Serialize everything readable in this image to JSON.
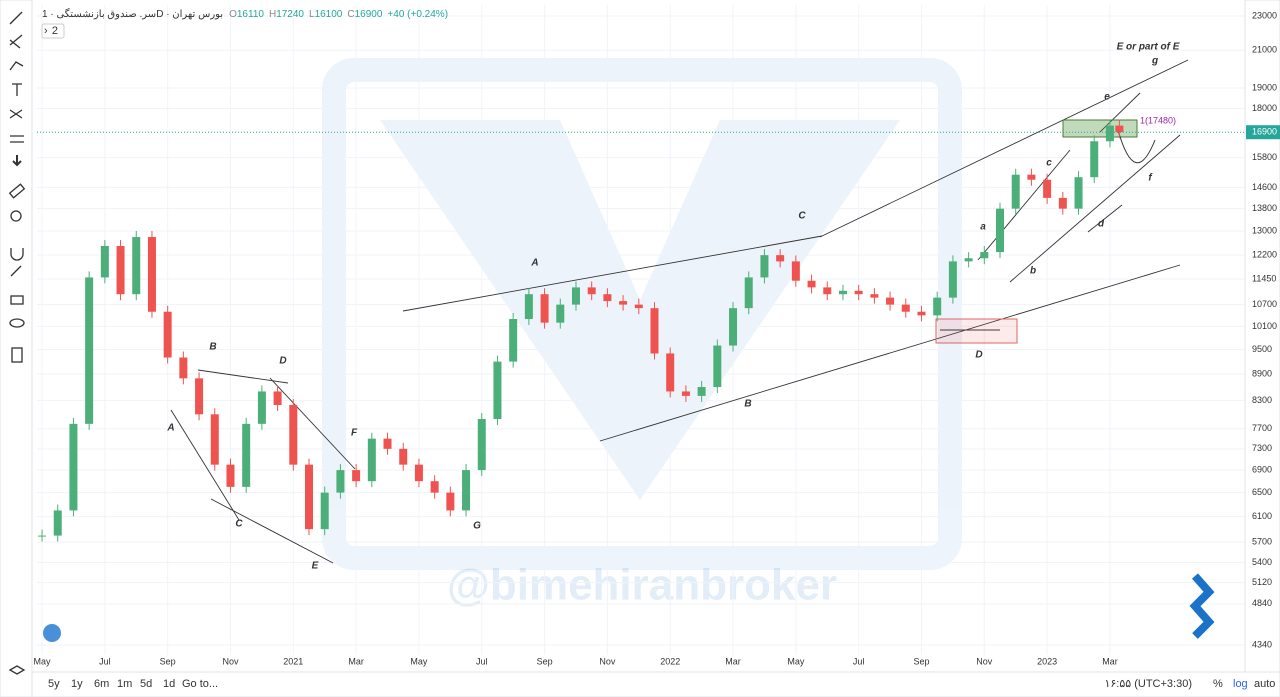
{
  "header": {
    "title": "سر. صندوق بازنشستگی · 1D · بورس تهران",
    "ohlc_letters": [
      "O",
      "H",
      "L",
      "C"
    ],
    "ohlc": [
      16110,
      17240,
      16100,
      16900
    ],
    "change": "+40 (+0.24%)",
    "collapse": "2"
  },
  "chart_data": {
    "type": "candlestick",
    "log_scale": true,
    "x": [
      0,
      0.5,
      1,
      1.5,
      2,
      2.5,
      3,
      3.5,
      4,
      4.5,
      5,
      5.5,
      6,
      6.5,
      7,
      7.5,
      8,
      8.5,
      9,
      9.5,
      10,
      10.5,
      11,
      11.5,
      12,
      12.5,
      13,
      13.5,
      14,
      14.5,
      15,
      15.5,
      16,
      16.5,
      17,
      17.5,
      18,
      18.5,
      19,
      19.5,
      20,
      20.5,
      21,
      21.5,
      22,
      22.5,
      23,
      23.5,
      24,
      24.5,
      25,
      25.5,
      26,
      26.5,
      27,
      27.5,
      28,
      28.5,
      29,
      29.5,
      30,
      30.5,
      31,
      31.5,
      32,
      32.5,
      33,
      33.5,
      34,
      34.3
    ],
    "close": [
      5800,
      6200,
      7800,
      11500,
      12500,
      11000,
      12800,
      10500,
      9300,
      8800,
      8000,
      7000,
      6600,
      7800,
      8500,
      8200,
      7000,
      5900,
      6500,
      6900,
      6700,
      7500,
      7300,
      7000,
      6700,
      6500,
      6200,
      6900,
      7900,
      9200,
      10300,
      11000,
      10200,
      10700,
      11200,
      11000,
      10800,
      10700,
      10600,
      9400,
      8500,
      8400,
      8600,
      9600,
      10600,
      11500,
      12200,
      12000,
      11400,
      11200,
      11000,
      11100,
      11000,
      10900,
      10700,
      10500,
      10400,
      10900,
      12000,
      12100,
      12300,
      13800,
      15100,
      14900,
      14200,
      13800,
      15000,
      16500,
      17200,
      16900
    ],
    "up_color": "#4caf7a",
    "down_color": "#ef5350",
    "xlim": [
      -0.16,
      38.3
    ],
    "xticks": [
      {
        "value": 0,
        "label": "May"
      },
      {
        "value": 2,
        "label": "Jul"
      },
      {
        "value": 4,
        "label": "Sep"
      },
      {
        "value": 6,
        "label": "Nov"
      },
      {
        "value": 8,
        "label": "2021"
      },
      {
        "value": 10,
        "label": "Mar"
      },
      {
        "value": 12,
        "label": "May"
      },
      {
        "value": 14,
        "label": "Jul"
      },
      {
        "value": 16,
        "label": "Sep"
      },
      {
        "value": 18,
        "label": "Nov"
      },
      {
        "value": 20,
        "label": "2022"
      },
      {
        "value": 22,
        "label": "Mar"
      },
      {
        "value": 24,
        "label": "May"
      },
      {
        "value": 26,
        "label": "Jul"
      },
      {
        "value": 28,
        "label": "Sep"
      },
      {
        "value": 30,
        "label": "Nov"
      },
      {
        "value": 32,
        "label": "2023"
      },
      {
        "value": 34,
        "label": "Mar"
      }
    ],
    "ylim": [
      4226,
      23680
    ],
    "yticks": [
      23000,
      21000,
      19000,
      18000,
      15800,
      14600,
      13800,
      13000,
      12200,
      11450,
      10700,
      10100,
      9500,
      8900,
      8300,
      7700,
      7300,
      6900,
      6500,
      6100,
      5700,
      5400,
      5120,
      4840,
      4340
    ],
    "target_label": "1(17480)",
    "annotations": [
      "E or part of E",
      "g",
      "e",
      "c",
      "a",
      "b",
      "d",
      "f",
      "C",
      "A",
      "B",
      "D",
      "F",
      "G",
      "A",
      "B",
      "D",
      "C",
      "E"
    ],
    "watermark": "@bimehiranbroker"
  },
  "bottom_bar": {
    "ranges": [
      "5y",
      "1y",
      "6m",
      "1m",
      "5d",
      "1d"
    ],
    "goto": "Go to...",
    "clock": "۱۶:۵۵ (UTC+3:30)",
    "percent": "%",
    "log": "log",
    "auto": "auto"
  }
}
